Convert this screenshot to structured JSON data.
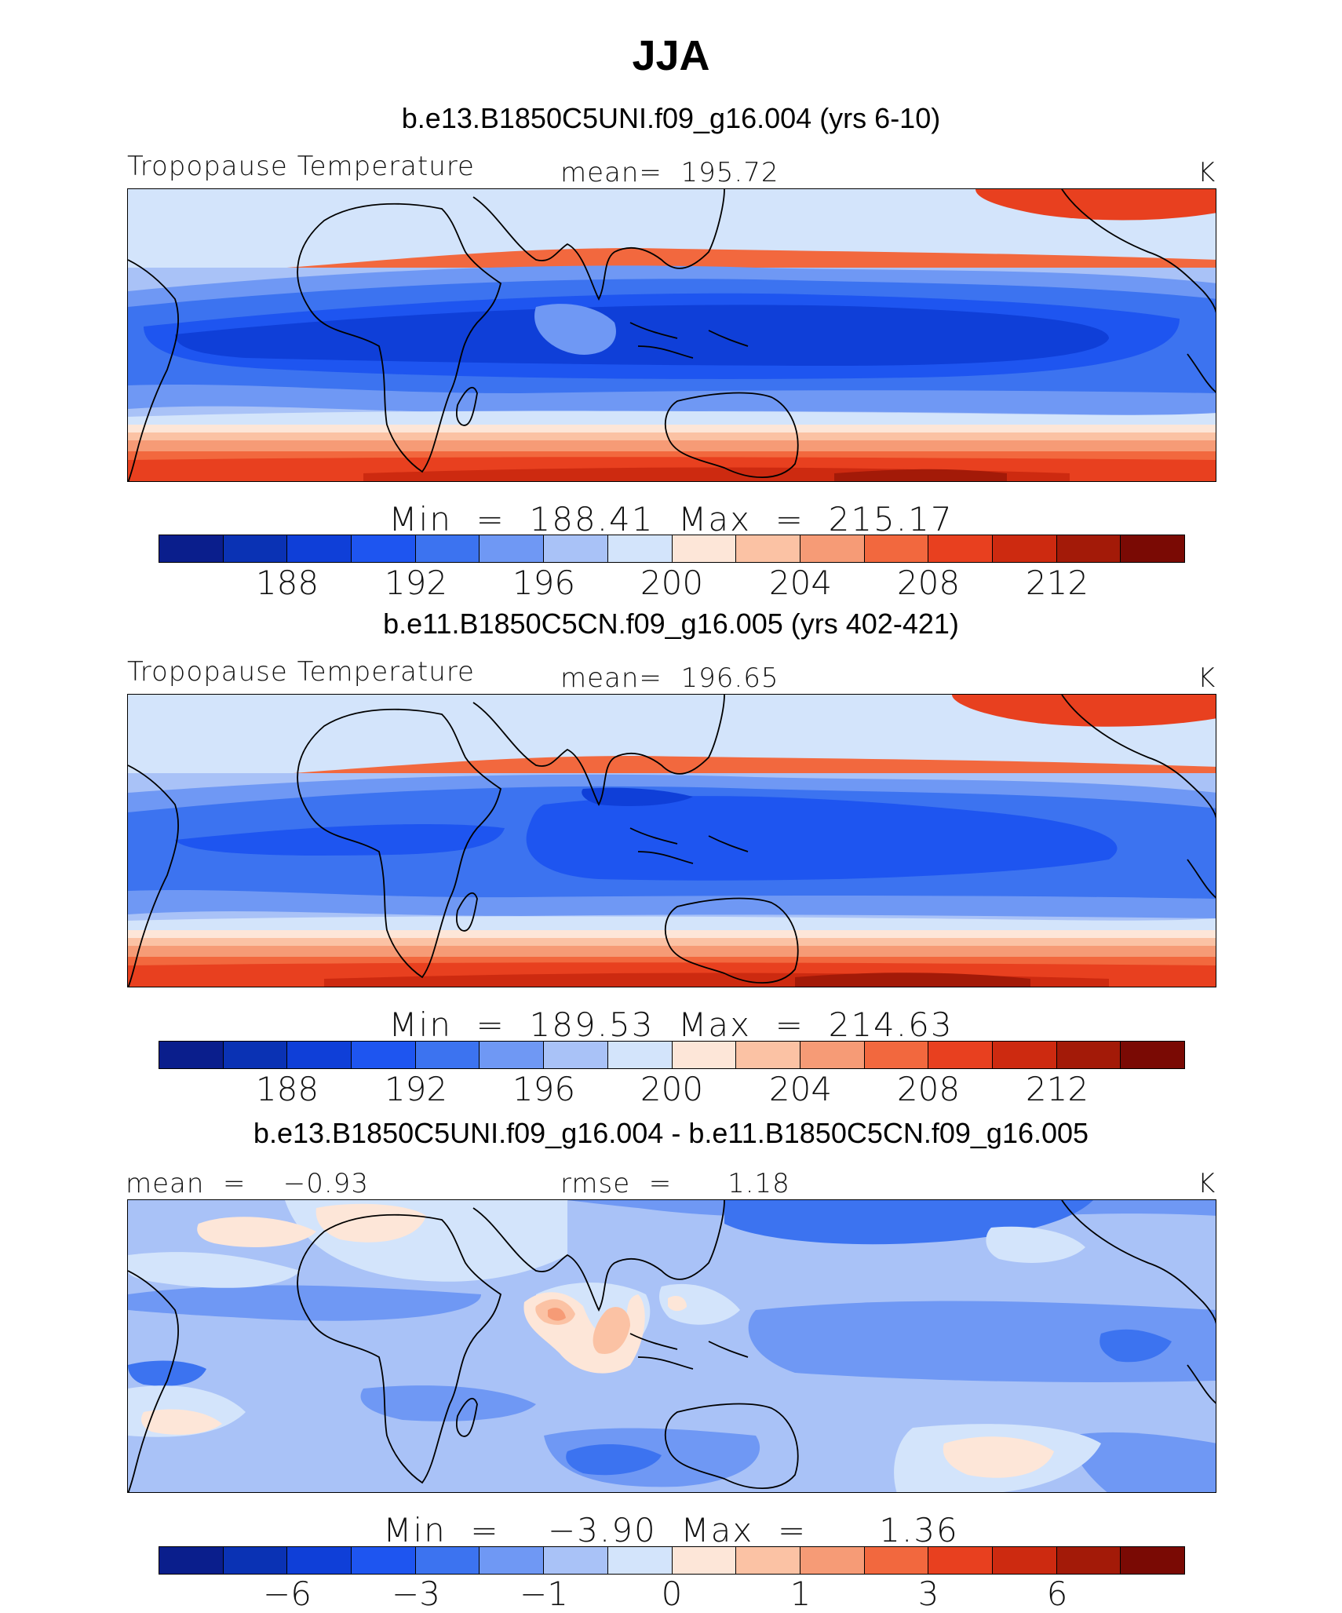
{
  "figure_title": "JJA",
  "units": "K",
  "palette": [
    "#0a1e8c",
    "#0a32b4",
    "#0f3fd8",
    "#1e55f0",
    "#3c73f0",
    "#6f98f4",
    "#a9c2f7",
    "#d3e4fb",
    "#fde6d8",
    "#fbc2a4",
    "#f69b76",
    "#f2683e",
    "#e8401f",
    "#cd2a10",
    "#a31a08",
    "#7a0a04"
  ],
  "chart_data": [
    {
      "type": "heatmap",
      "case_title": "b.e13.B1850C5UNI.f09_g16.004 (yrs 6-10)",
      "variable_label": "Tropopause Temperature",
      "stat_label": "mean=  195.72",
      "units": "K",
      "min_max_label": "Min  =  188.41  Max  =  215.17",
      "min": 188.41,
      "max": 215.17,
      "mean": 195.72,
      "colorbar_ticks": [
        "188",
        "192",
        "196",
        "200",
        "204",
        "208",
        "212"
      ],
      "levels": [
        186,
        188,
        190,
        192,
        194,
        196,
        198,
        200,
        202,
        204,
        206,
        208,
        210,
        212,
        214
      ]
    },
    {
      "type": "heatmap",
      "case_title": "b.e11.B1850C5CN.f09_g16.005 (yrs 402-421)",
      "variable_label": "Tropopause Temperature",
      "stat_label": "mean=  196.65",
      "units": "K",
      "min_max_label": "Min  =  189.53  Max  =  214.63",
      "min": 189.53,
      "max": 214.63,
      "mean": 196.65,
      "colorbar_ticks": [
        "188",
        "192",
        "196",
        "200",
        "204",
        "208",
        "212"
      ],
      "levels": [
        186,
        188,
        190,
        192,
        194,
        196,
        198,
        200,
        202,
        204,
        206,
        208,
        210,
        212,
        214
      ]
    },
    {
      "type": "heatmap",
      "case_title": "b.e13.B1850C5UNI.f09_g16.004 - b.e11.B1850C5CN.f09_g16.005",
      "stat_left_label": "mean  =    −0.93",
      "stat_label": "rmse  =      1.18",
      "units": "K",
      "min_max_label": "Min  =    −3.90  Max  =      1.36",
      "min": -3.9,
      "max": 1.36,
      "mean": -0.93,
      "rmse": 1.18,
      "colorbar_ticks": [
        "−6",
        "−3",
        "−1",
        "0",
        "1",
        "3",
        "6"
      ],
      "levels": [
        -8,
        -6,
        -5,
        -3,
        -2,
        -1,
        -0.5,
        0,
        0.5,
        1,
        2,
        3,
        5,
        6,
        8
      ]
    }
  ]
}
